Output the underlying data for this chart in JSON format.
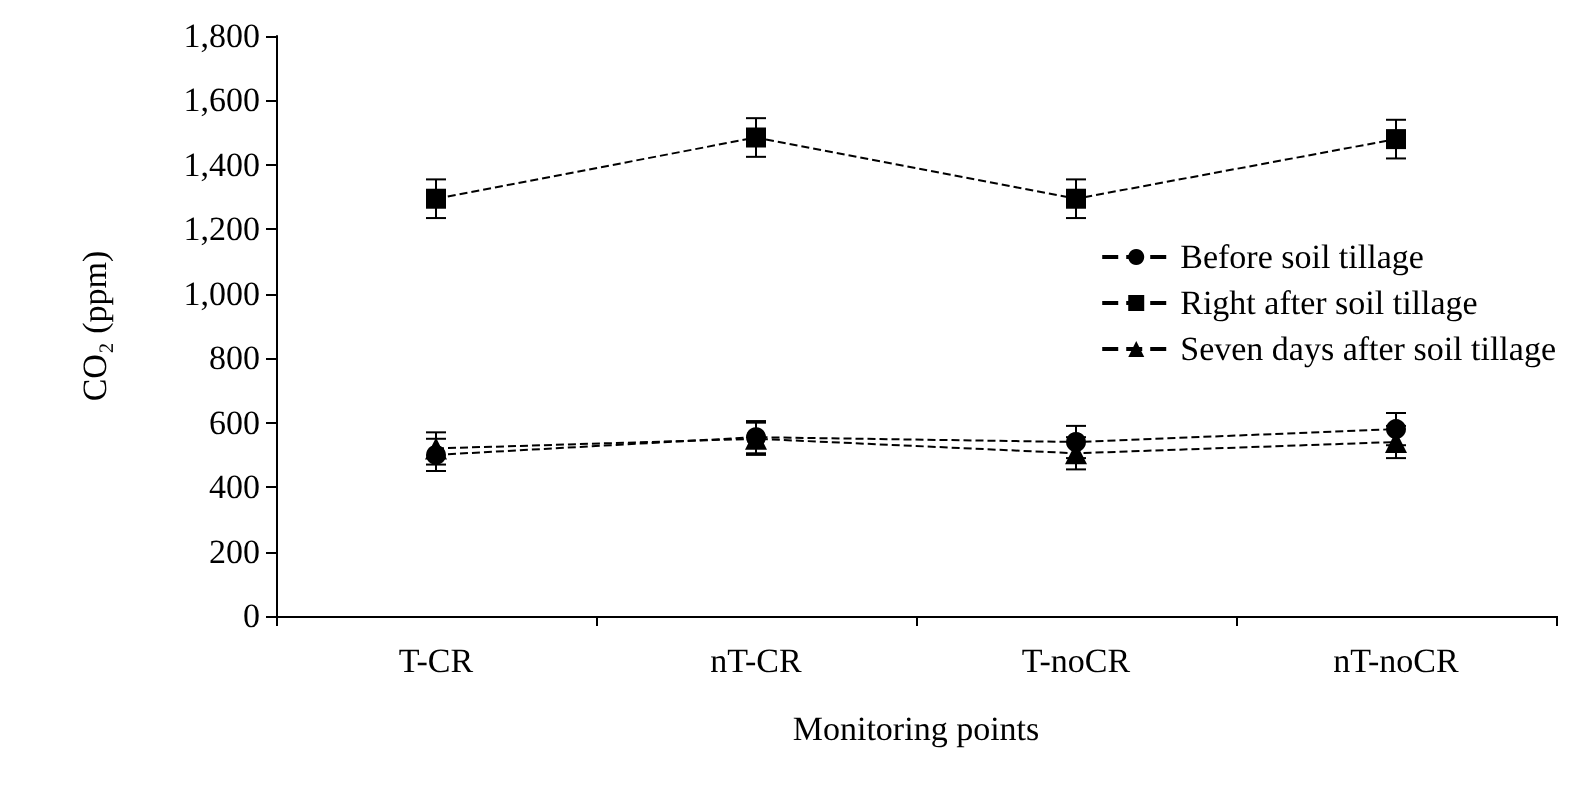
{
  "chart_data": {
    "type": "line",
    "xlabel": "Monitoring points",
    "ylabel": "CO₂ (ppm)",
    "categories": [
      "T-CR",
      "nT-CR",
      "T-noCR",
      "nT-noCR"
    ],
    "ylim": [
      0,
      1800
    ],
    "yticks": [
      {
        "value": 0,
        "label": "0"
      },
      {
        "value": 200,
        "label": "200"
      },
      {
        "value": 400,
        "label": "400"
      },
      {
        "value": 600,
        "label": "600"
      },
      {
        "value": 800,
        "label": "800"
      },
      {
        "value": 1000,
        "label": "1,000"
      },
      {
        "value": 1200,
        "label": "1,200"
      },
      {
        "value": 1400,
        "label": "1,400"
      },
      {
        "value": 1600,
        "label": "1,600"
      },
      {
        "value": 1800,
        "label": "1,800"
      }
    ],
    "grid": false,
    "legend": "right",
    "line_style": "dashed",
    "series": [
      {
        "name": "Before soil tillage",
        "color": "#000000",
        "marker": "circle",
        "values": [
          500,
          555,
          540,
          580
        ],
        "errors": [
          50,
          50,
          50,
          50
        ]
      },
      {
        "name": "Right after soil tillage",
        "color": "#000000",
        "marker": "square",
        "values": [
          1295,
          1485,
          1295,
          1480
        ],
        "errors": [
          60,
          60,
          60,
          60
        ]
      },
      {
        "name": "Seven days after soil tillage",
        "color": "#000000",
        "marker": "triangle",
        "values": [
          520,
          550,
          505,
          540
        ],
        "errors": [
          50,
          50,
          50,
          50
        ]
      }
    ]
  }
}
